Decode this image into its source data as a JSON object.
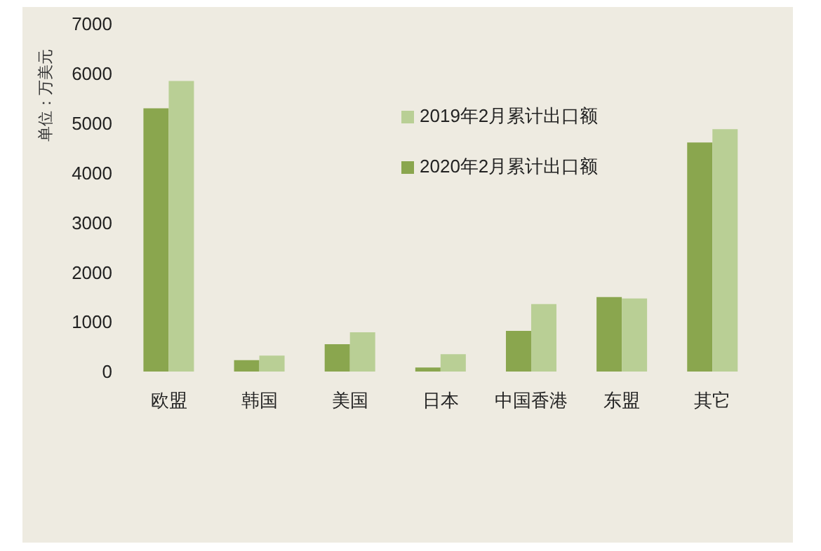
{
  "chart_data": {
    "type": "bar",
    "ylabel": "单位：万美元",
    "categories": [
      "欧盟",
      "韩国",
      "美国",
      "日本",
      "中国香港",
      "东盟",
      "其它"
    ],
    "series": [
      {
        "name": "2020年2月累计出口额",
        "color": "#8aa64e",
        "values": [
          5300,
          230,
          550,
          80,
          820,
          1500,
          4610
        ]
      },
      {
        "name": "2019年2月累计出口额",
        "color": "#b9cf95",
        "values": [
          5850,
          320,
          790,
          350,
          1360,
          1470,
          4880
        ]
      }
    ],
    "ylim": [
      0,
      7000
    ],
    "yticks": [
      0,
      1000,
      2000,
      3000,
      4000,
      5000,
      6000,
      7000
    ],
    "grid": false,
    "legend": "top"
  }
}
